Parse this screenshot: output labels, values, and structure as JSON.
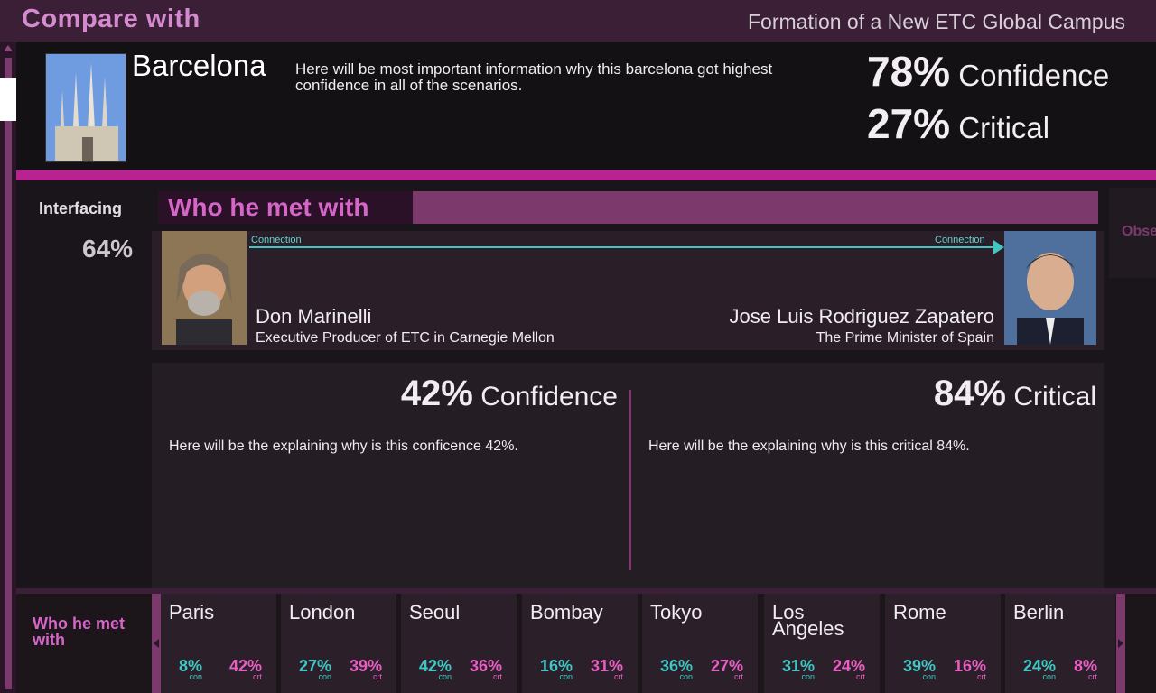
{
  "header": {
    "title": "Compare with",
    "subtitle": "Formation of a New ETC Global Campus"
  },
  "selected": {
    "city": "Barcelona",
    "description": "Here will be most important information why this barcelona got highest confidence in all of the scenarios.",
    "confidence_pct": "78%",
    "confidence_label": "Confidence",
    "critical_pct": "27%",
    "critical_label": "Critical"
  },
  "sidebar": {
    "label": "Interfacing",
    "value": "64%"
  },
  "meeting": {
    "title": "Who he met with",
    "connection_left": "Connection",
    "connection_right": "Connection",
    "person1": {
      "name": "Don Marinelli",
      "role": "Executive Producer of ETC in Carnegie Mellon"
    },
    "person2": {
      "name": "Jose Luis Rodriguez Zapatero",
      "role": "The Prime Minister of Spain"
    },
    "side_tab": "Obse",
    "confidence_pct": "42%",
    "confidence_label": "Confidence",
    "critical_pct": "84%",
    "critical_label": "Critical",
    "confidence_text": "Here will be the explaining why is this conficence 42%.",
    "critical_text": "Here will be the explaining why is this critical 84%."
  },
  "bottom": {
    "label": "Who he met with",
    "con_suffix": "con",
    "crt_suffix": "crt",
    "cities": [
      {
        "name": "Paris",
        "con": "8%",
        "crt": "42%"
      },
      {
        "name": "London",
        "con": "27%",
        "crt": "39%"
      },
      {
        "name": "Seoul",
        "con": "42%",
        "crt": "36%"
      },
      {
        "name": "Bombay",
        "con": "16%",
        "crt": "31%"
      },
      {
        "name": "Tokyo",
        "con": "36%",
        "crt": "27%"
      },
      {
        "name": "Los Angeles",
        "con": "31%",
        "crt": "24%"
      },
      {
        "name": "Rome",
        "con": "39%",
        "crt": "16%"
      },
      {
        "name": "Berlin",
        "con": "24%",
        "crt": "8%"
      }
    ]
  },
  "colors": {
    "accent_pink": "#d665c8",
    "bar_magenta": "#b82390",
    "connection_teal": "#41c6c3"
  }
}
